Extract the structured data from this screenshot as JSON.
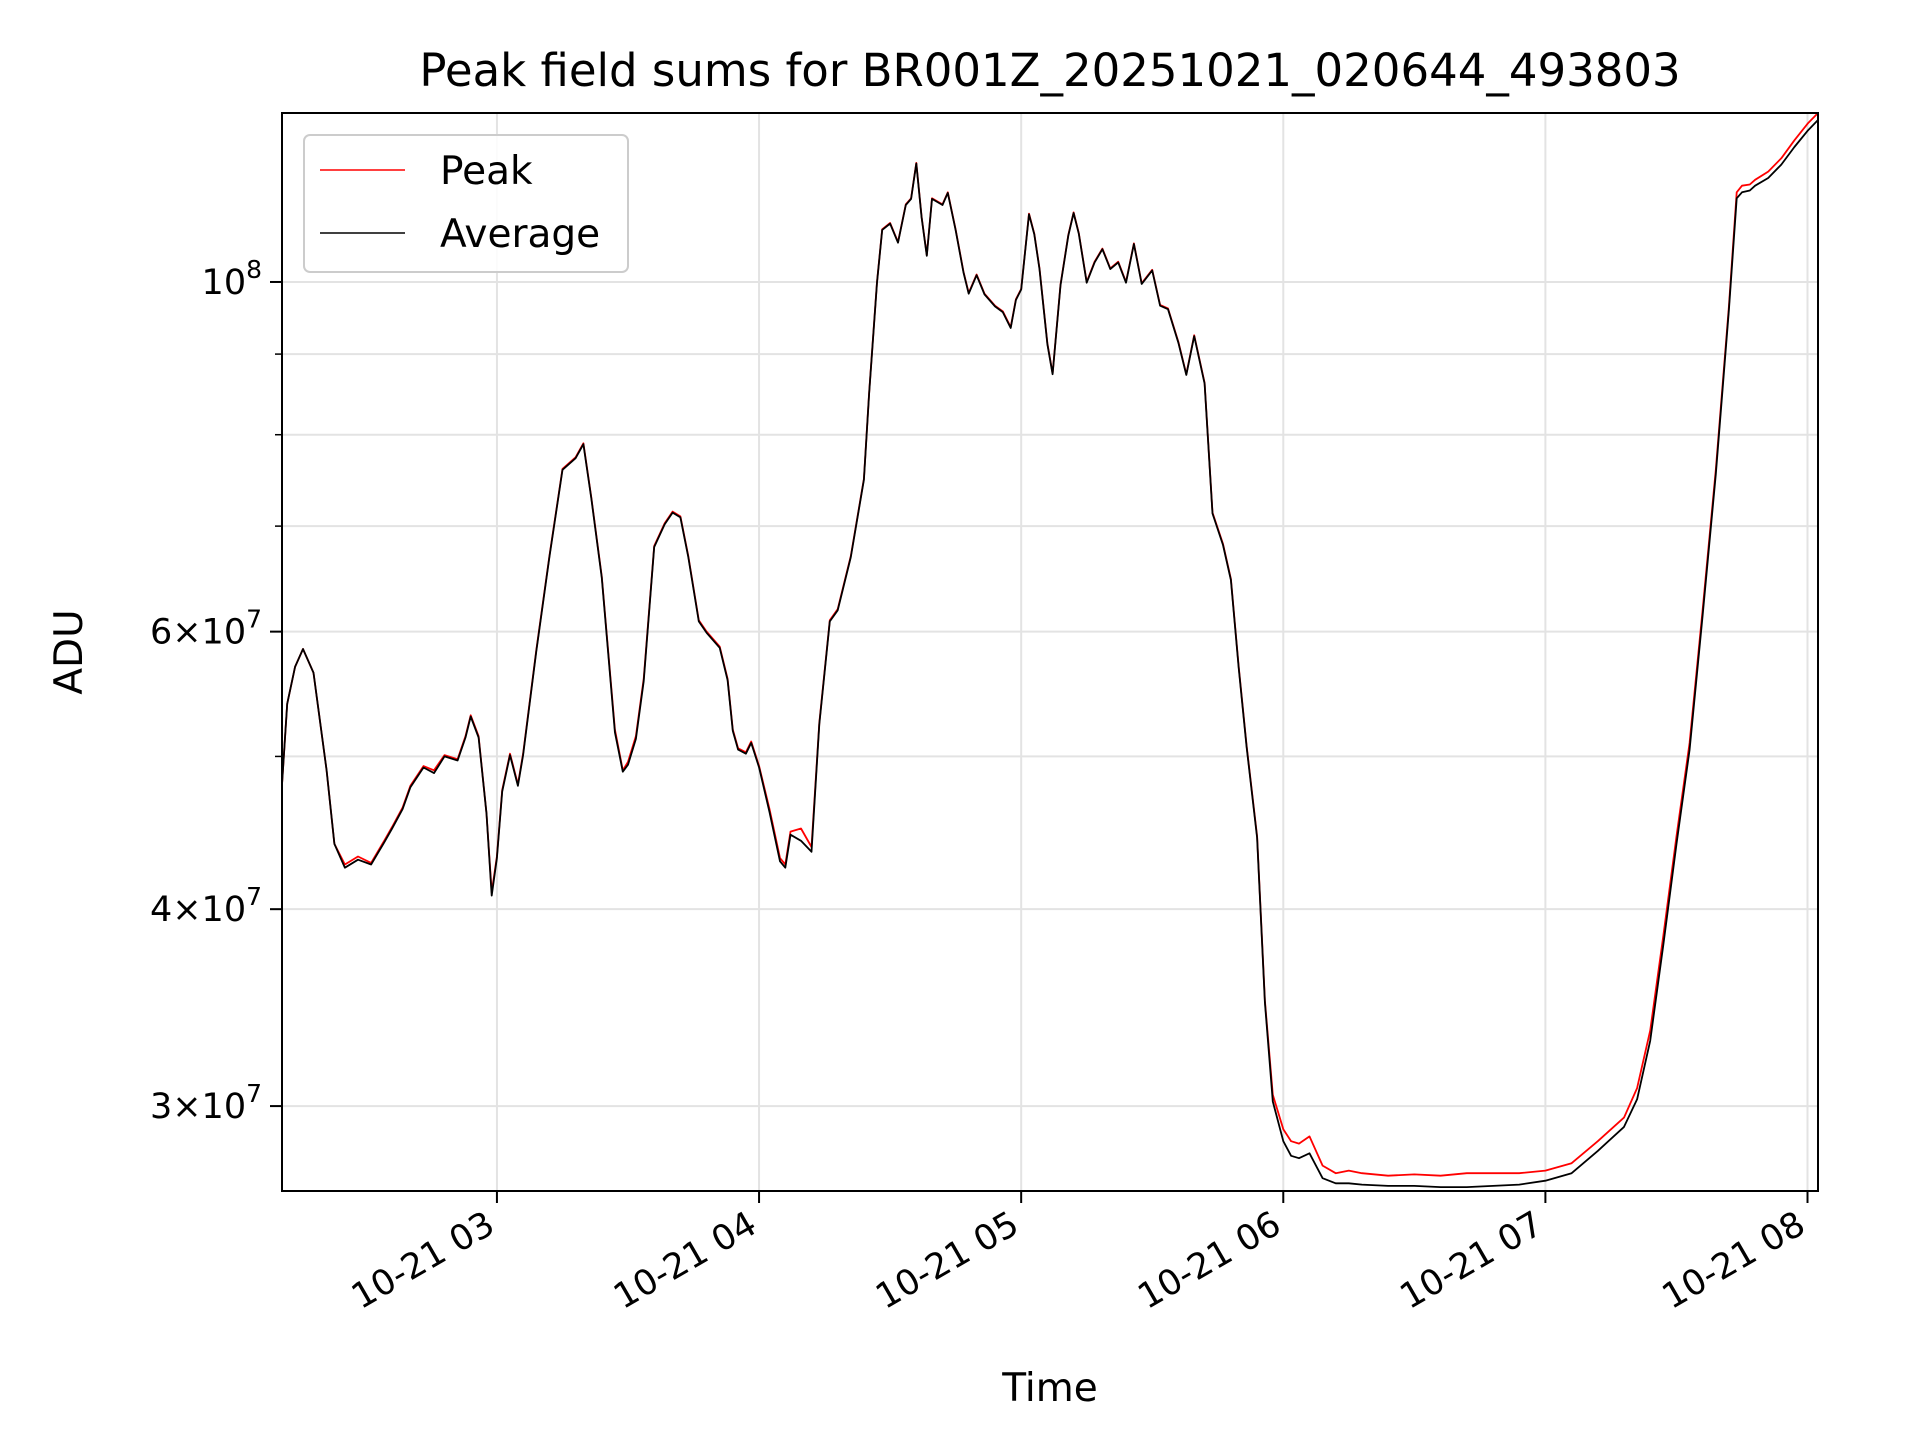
{
  "chart_data": {
    "type": "line",
    "title": "Peak field sums for BR001Z_20251021_020644_493803",
    "xlabel": "Time",
    "ylabel": "ADU",
    "yscale": "log",
    "grid": true,
    "legend_position": "top-left",
    "xlim_hours": [
      2.18,
      8.04
    ],
    "ylim": [
      26500000,
      128000000
    ],
    "x_ticks": [
      {
        "value": 3,
        "label": "10-21 03"
      },
      {
        "value": 4,
        "label": "10-21 04"
      },
      {
        "value": 5,
        "label": "10-21 05"
      },
      {
        "value": 6,
        "label": "10-21 06"
      },
      {
        "value": 7,
        "label": "10-21 07"
      },
      {
        "value": 8,
        "label": "10-21 08"
      }
    ],
    "y_major_ticks": [
      {
        "value": 30000000,
        "base": "3×10",
        "exp": "7"
      },
      {
        "value": 40000000,
        "base": "4×10",
        "exp": "7"
      },
      {
        "value": 60000000,
        "base": "6×10",
        "exp": "7"
      },
      {
        "value": 100000000,
        "base": "10",
        "exp": "8"
      }
    ],
    "y_minor_grid": [
      50000000,
      70000000,
      80000000,
      90000000
    ],
    "x_hours": [
      2.18,
      2.2,
      2.23,
      2.26,
      2.3,
      2.35,
      2.38,
      2.42,
      2.47,
      2.52,
      2.57,
      2.6,
      2.64,
      2.67,
      2.72,
      2.76,
      2.8,
      2.85,
      2.88,
      2.9,
      2.93,
      2.96,
      2.98,
      3.0,
      3.02,
      3.05,
      3.08,
      3.1,
      3.15,
      3.2,
      3.25,
      3.3,
      3.33,
      3.36,
      3.4,
      3.45,
      3.48,
      3.5,
      3.53,
      3.56,
      3.6,
      3.64,
      3.67,
      3.7,
      3.73,
      3.77,
      3.8,
      3.85,
      3.88,
      3.9,
      3.92,
      3.95,
      3.97,
      4.0,
      4.04,
      4.08,
      4.1,
      4.12,
      4.16,
      4.2,
      4.23,
      4.27,
      4.3,
      4.35,
      4.4,
      4.42,
      4.45,
      4.47,
      4.5,
      4.53,
      4.56,
      4.58,
      4.6,
      4.62,
      4.64,
      4.66,
      4.7,
      4.72,
      4.75,
      4.78,
      4.8,
      4.83,
      4.86,
      4.9,
      4.93,
      4.96,
      4.98,
      5.0,
      5.03,
      5.05,
      5.07,
      5.1,
      5.12,
      5.15,
      5.18,
      5.2,
      5.22,
      5.25,
      5.28,
      5.31,
      5.34,
      5.37,
      5.4,
      5.43,
      5.46,
      5.5,
      5.53,
      5.56,
      5.6,
      5.63,
      5.66,
      5.7,
      5.73,
      5.77,
      5.8,
      5.83,
      5.86,
      5.9,
      5.93,
      5.96,
      6.0,
      6.03,
      6.06,
      6.1,
      6.15,
      6.2,
      6.25,
      6.3,
      6.4,
      6.5,
      6.6,
      6.7,
      6.8,
      6.9,
      7.0,
      7.1,
      7.2,
      7.3,
      7.35,
      7.4,
      7.45,
      7.5,
      7.55,
      7.6,
      7.65,
      7.7,
      7.73,
      7.75,
      7.78,
      7.8,
      7.85,
      7.9,
      7.95,
      8.0,
      8.04
    ],
    "series": [
      {
        "name": "Peak",
        "color": "#ff0000",
        "values": [
          48000000,
          54000000,
          57000000,
          58500000,
          56500000,
          49000000,
          44000000,
          42700000,
          43200000,
          42800000,
          44200000,
          45100000,
          46400000,
          47900000,
          49300000,
          49000000,
          50100000,
          49800000,
          51500000,
          53100000,
          51500000,
          46000000,
          41000000,
          43200000,
          47600000,
          50200000,
          48000000,
          50200000,
          58400000,
          67000000,
          76100000,
          77400000,
          79000000,
          73000000,
          65000000,
          52000000,
          49000000,
          49600000,
          51500000,
          56000000,
          68000000,
          70300000,
          71500000,
          71000000,
          67000000,
          61000000,
          60000000,
          58700000,
          56000000,
          52000000,
          50600000,
          50300000,
          51100000,
          49300000,
          46300000,
          43100000,
          42700000,
          44800000,
          45000000,
          43800000,
          52500000,
          61000000,
          62000000,
          67000000,
          75000000,
          85000000,
          100000000,
          108000000,
          109000000,
          106000000,
          112000000,
          113000000,
          119000000,
          110000000,
          104000000,
          113000000,
          112000000,
          114000000,
          108000000,
          101500000,
          98400000,
          101100000,
          98300000,
          96600000,
          95800000,
          93600000,
          97500000,
          99000000,
          110500000,
          107300000,
          102000000,
          91400000,
          87500000,
          99600000,
          107100000,
          110700000,
          107400000,
          100000000,
          103000000,
          105000000,
          102000000,
          103000000,
          100000000,
          105800000,
          99800000,
          101800000,
          96700000,
          96200000,
          91600000,
          87400000,
          92500000,
          86300000,
          71400000,
          68200000,
          64800000,
          57000000,
          50800000,
          44500000,
          35000000,
          30500000,
          29000000,
          28500000,
          28400000,
          28700000,
          27500000,
          27200000,
          27300000,
          27200000,
          27100000,
          27150000,
          27100000,
          27200000,
          27200000,
          27200000,
          27300000,
          27600000,
          28500000,
          29500000,
          30800000,
          33500000,
          38500000,
          44500000,
          51000000,
          62000000,
          76000000,
          96500000,
          114000000,
          115100000,
          115300000,
          116100000,
          117500000,
          119800000,
          123000000,
          126000000,
          128000000
        ]
      },
      {
        "name": "Average",
        "color": "#000000",
        "values": [
          48000000,
          54000000,
          57000000,
          58500000,
          56500000,
          49000000,
          44000000,
          42500000,
          43000000,
          42700000,
          44100000,
          45000000,
          46300000,
          47800000,
          49200000,
          48800000,
          50000000,
          49700000,
          51400000,
          53000000,
          51400000,
          46000000,
          40800000,
          43100000,
          47500000,
          50100000,
          47900000,
          50100000,
          58300000,
          66900000,
          76000000,
          77300000,
          78900000,
          72900000,
          64900000,
          51800000,
          48900000,
          49400000,
          51300000,
          55800000,
          67900000,
          70200000,
          71400000,
          70900000,
          66900000,
          60900000,
          59900000,
          58600000,
          55900000,
          51900000,
          50500000,
          50200000,
          51000000,
          49200000,
          46100000,
          42900000,
          42500000,
          44600000,
          44200000,
          43500000,
          52400000,
          60900000,
          61900000,
          66900000,
          74900000,
          84900000,
          99900000,
          107900000,
          108900000,
          105900000,
          111900000,
          112900000,
          118900000,
          109900000,
          103900000,
          112900000,
          111900000,
          113900000,
          107900000,
          101400000,
          98300000,
          101000000,
          98200000,
          96500000,
          95700000,
          93500000,
          97400000,
          98900000,
          110400000,
          107200000,
          101900000,
          91300000,
          87400000,
          99500000,
          107000000,
          110600000,
          107300000,
          99900000,
          102900000,
          104900000,
          101900000,
          102900000,
          99900000,
          105700000,
          99700000,
          101700000,
          96600000,
          96100000,
          91500000,
          87300000,
          92400000,
          86200000,
          71300000,
          68100000,
          64700000,
          56900000,
          50700000,
          44400000,
          34900000,
          30200000,
          28500000,
          27900000,
          27800000,
          28000000,
          27000000,
          26800000,
          26800000,
          26750000,
          26700000,
          26700000,
          26650000,
          26650000,
          26700000,
          26750000,
          26900000,
          27200000,
          28100000,
          29100000,
          30300000,
          33000000,
          38000000,
          44000000,
          50500000,
          61500000,
          75500000,
          96000000,
          113000000,
          114000000,
          114300000,
          115100000,
          116400000,
          118700000,
          121800000,
          124700000,
          126700000
        ]
      }
    ]
  }
}
